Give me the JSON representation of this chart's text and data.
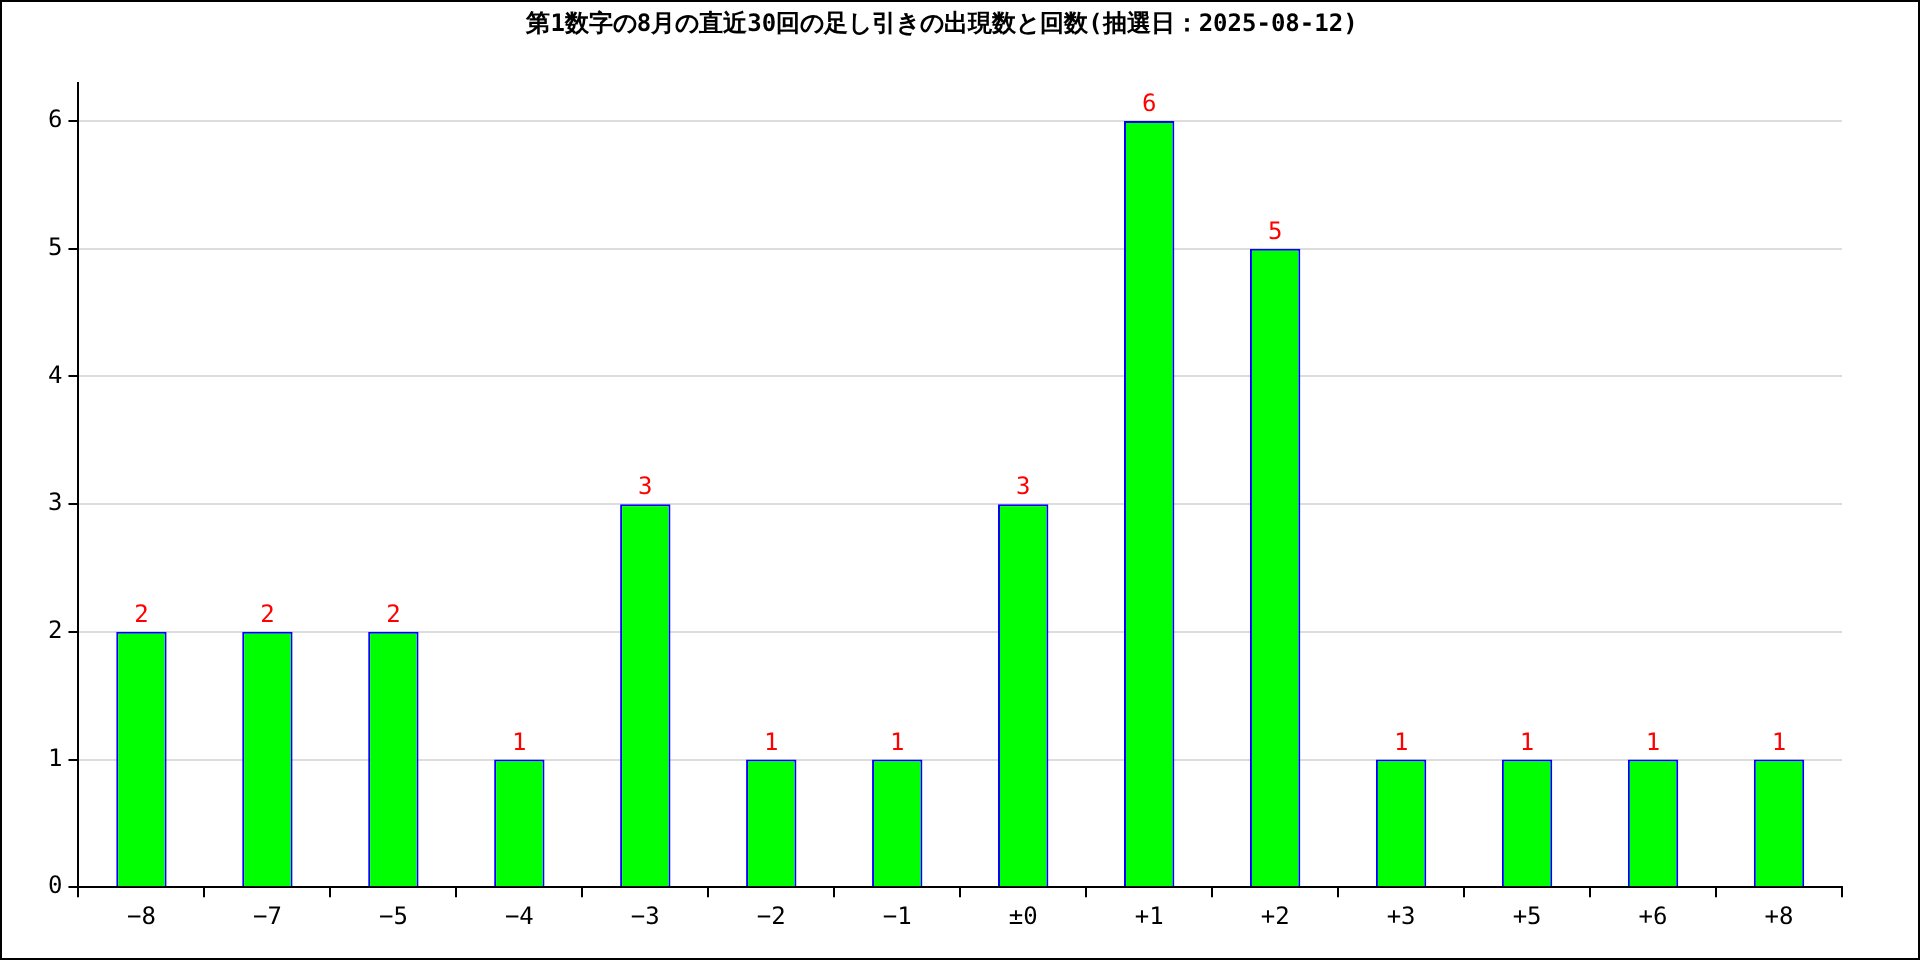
{
  "chart_data": {
    "type": "bar",
    "title": "第1数字の8月の直近30回の足し引きの出現数と回数(抽選日：2025-08-12)",
    "categories": [
      "−8",
      "−7",
      "−5",
      "−4",
      "−3",
      "−2",
      "−1",
      "±0",
      "+1",
      "+2",
      "+3",
      "+5",
      "+6",
      "+8"
    ],
    "values": [
      2,
      2,
      2,
      1,
      3,
      1,
      1,
      3,
      6,
      5,
      1,
      1,
      1,
      1
    ],
    "color": "#00ff00",
    "ylim": [
      0,
      6.3
    ],
    "yticks": [
      0,
      1,
      2,
      3,
      4,
      5,
      6
    ],
    "grid": "y",
    "legend": false,
    "data_labels": true
  }
}
